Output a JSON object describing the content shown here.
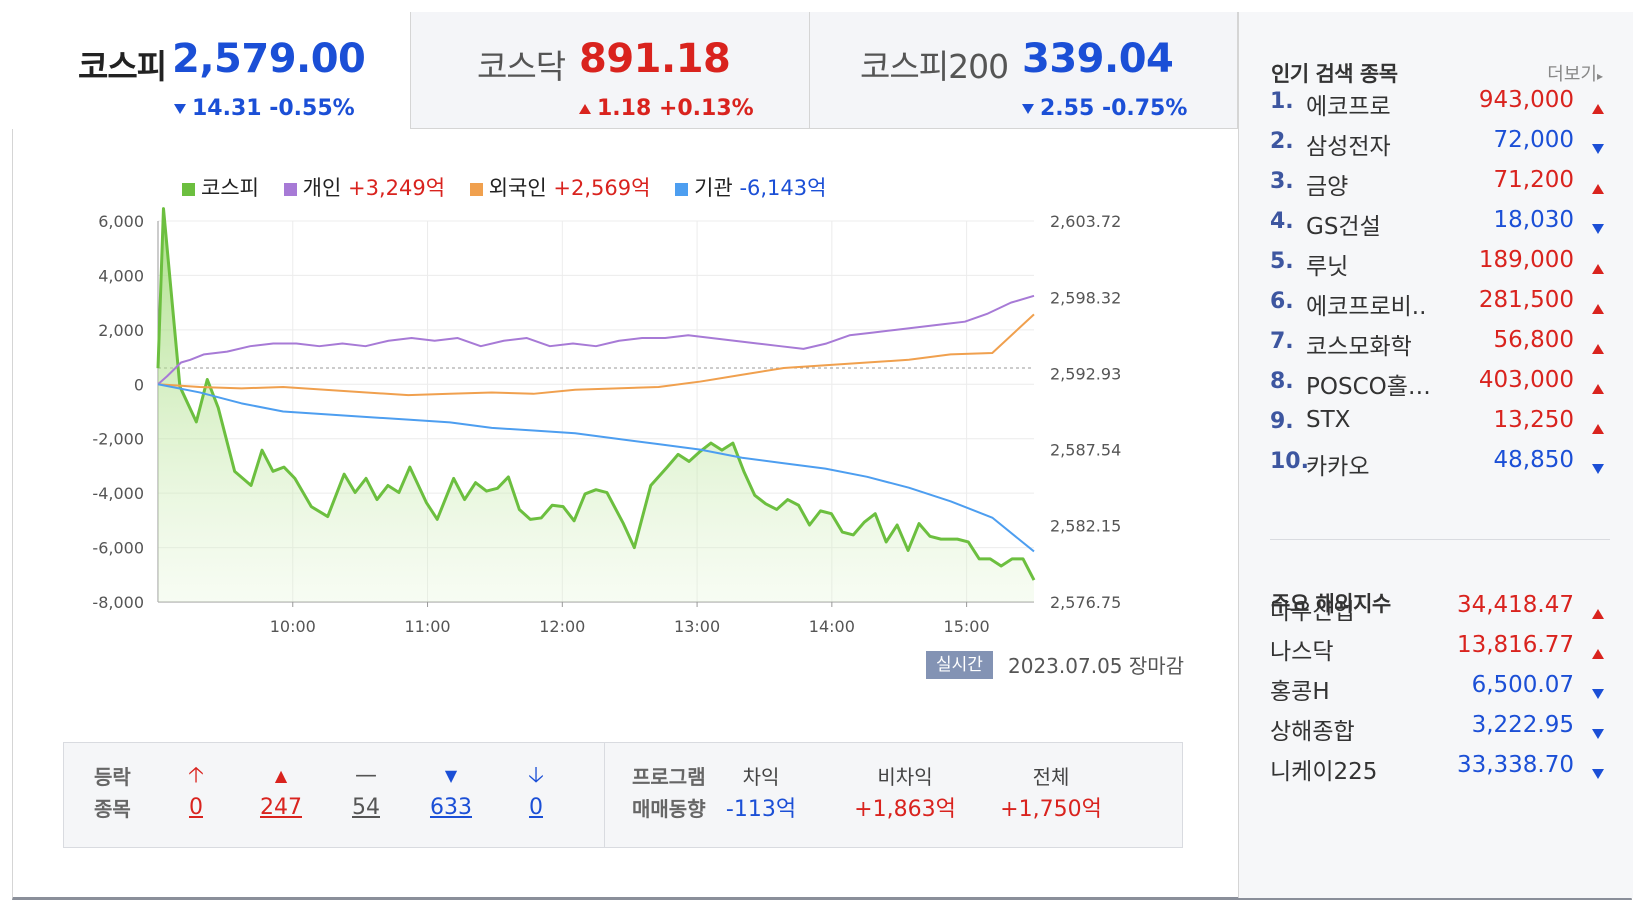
{
  "tabs": [
    {
      "name": "코스피",
      "value": "2,579.00",
      "change": "14.31 -0.55%",
      "direction": "down"
    },
    {
      "name": "코스닥",
      "value": "891.18",
      "change": "1.18 +0.13%",
      "direction": "up"
    },
    {
      "name": "코스피200",
      "value": "339.04",
      "change": "2.55 -0.75%",
      "direction": "down"
    }
  ],
  "legend": {
    "kospi": "코스피",
    "individual_label": "개인",
    "individual_value": "+3,249억",
    "foreign_label": "외국인",
    "foreign_value": "+2,569억",
    "institution_label": "기관",
    "institution_value": "-6,143억"
  },
  "colors": {
    "kospi": "#6cbf3f",
    "individual": "#a77ad6",
    "foreign": "#f0a04e",
    "institution": "#4d9ef0",
    "up": "#d9231e",
    "down": "#1b4fd6"
  },
  "chart_data": {
    "type": "line",
    "x_ticks": [
      "10:00",
      "11:00",
      "12:00",
      "13:00",
      "14:00",
      "15:00"
    ],
    "y_left_ticks": [
      "6,000",
      "4,000",
      "2,000",
      "0",
      "-2,000",
      "-4,000",
      "-6,000",
      "-8,000"
    ],
    "y_right_ticks": [
      "2,603.72",
      "2,598.32",
      "2,592.93",
      "2,587.54",
      "2,582.15",
      "2,576.75"
    ],
    "ylim_left": [
      -8000,
      6000
    ],
    "ylim_right": [
      2576.75,
      2603.72
    ],
    "x_range": [
      "09:00",
      "15:30"
    ],
    "reference_line": 2593.31,
    "series": [
      {
        "name": "코스피",
        "axis": "right",
        "points": [
          [
            0,
            2593.3
          ],
          [
            0.05,
            2604.6
          ],
          [
            0.2,
            2592.0
          ],
          [
            0.35,
            2589.5
          ],
          [
            0.45,
            2592.5
          ],
          [
            0.55,
            2590.5
          ],
          [
            0.7,
            2586.0
          ],
          [
            0.85,
            2585.0
          ],
          [
            0.95,
            2587.5
          ],
          [
            1.05,
            2586.0
          ],
          [
            1.15,
            2586.3
          ],
          [
            1.25,
            2585.5
          ],
          [
            1.4,
            2583.5
          ],
          [
            1.55,
            2582.8
          ],
          [
            1.7,
            2585.8
          ],
          [
            1.8,
            2584.5
          ],
          [
            1.9,
            2585.5
          ],
          [
            2.0,
            2584.0
          ],
          [
            2.1,
            2585.0
          ],
          [
            2.2,
            2584.5
          ],
          [
            2.3,
            2586.3
          ],
          [
            2.45,
            2583.8
          ],
          [
            2.55,
            2582.6
          ],
          [
            2.7,
            2585.5
          ],
          [
            2.8,
            2584.0
          ],
          [
            2.9,
            2585.2
          ],
          [
            3.0,
            2584.6
          ],
          [
            3.1,
            2584.8
          ],
          [
            3.2,
            2585.6
          ],
          [
            3.3,
            2583.3
          ],
          [
            3.4,
            2582.6
          ],
          [
            3.5,
            2582.7
          ],
          [
            3.6,
            2583.6
          ],
          [
            3.7,
            2583.5
          ],
          [
            3.8,
            2582.5
          ],
          [
            3.9,
            2584.4
          ],
          [
            4.0,
            2584.7
          ],
          [
            4.1,
            2584.5
          ],
          [
            4.25,
            2582.3
          ],
          [
            4.35,
            2580.6
          ],
          [
            4.5,
            2585.0
          ],
          [
            4.65,
            2586.3
          ],
          [
            4.75,
            2587.2
          ],
          [
            4.85,
            2586.7
          ],
          [
            4.95,
            2587.4
          ],
          [
            5.05,
            2588.0
          ],
          [
            5.15,
            2587.5
          ],
          [
            5.25,
            2588.0
          ],
          [
            5.35,
            2586.0
          ],
          [
            5.45,
            2584.3
          ],
          [
            5.55,
            2583.7
          ],
          [
            5.65,
            2583.3
          ],
          [
            5.75,
            2584.0
          ],
          [
            5.85,
            2583.6
          ],
          [
            5.95,
            2582.2
          ],
          [
            6.05,
            2583.2
          ],
          [
            6.15,
            2583.0
          ],
          [
            6.25,
            2581.7
          ],
          [
            6.35,
            2581.5
          ],
          [
            6.45,
            2582.4
          ],
          [
            6.55,
            2583.0
          ],
          [
            6.65,
            2581.0
          ],
          [
            6.75,
            2582.2
          ],
          [
            6.85,
            2580.4
          ],
          [
            6.95,
            2582.3
          ],
          [
            7.05,
            2581.4
          ],
          [
            7.15,
            2581.2
          ],
          [
            7.3,
            2581.2
          ],
          [
            7.4,
            2581.0
          ],
          [
            7.5,
            2579.8
          ],
          [
            7.6,
            2579.8
          ],
          [
            7.7,
            2579.3
          ],
          [
            7.8,
            2579.8
          ],
          [
            7.9,
            2579.8
          ],
          [
            8.0,
            2578.3
          ]
        ]
      },
      {
        "name": "개인",
        "axis": "left",
        "points": [
          [
            0,
            0
          ],
          [
            0.2,
            300
          ],
          [
            0.5,
            800
          ],
          [
            0.7,
            900
          ],
          [
            1.0,
            1100
          ],
          [
            1.5,
            1200
          ],
          [
            2.0,
            1400
          ],
          [
            2.5,
            1500
          ],
          [
            3.0,
            1500
          ],
          [
            3.5,
            1400
          ],
          [
            4.0,
            1500
          ],
          [
            4.5,
            1400
          ],
          [
            5.0,
            1600
          ],
          [
            5.5,
            1700
          ],
          [
            6.0,
            1600
          ],
          [
            6.5,
            1700
          ],
          [
            7.0,
            1400
          ],
          [
            7.5,
            1600
          ],
          [
            8.0,
            1700
          ],
          [
            8.5,
            1400
          ],
          [
            9.0,
            1500
          ],
          [
            9.5,
            1400
          ],
          [
            10.0,
            1600
          ],
          [
            10.5,
            1700
          ],
          [
            11.0,
            1700
          ],
          [
            11.5,
            1800
          ],
          [
            12.0,
            1700
          ],
          [
            12.5,
            1600
          ],
          [
            13.0,
            1500
          ],
          [
            13.5,
            1400
          ],
          [
            14.0,
            1300
          ],
          [
            14.5,
            1500
          ],
          [
            15.0,
            1800
          ],
          [
            15.5,
            1900
          ],
          [
            16.0,
            2000
          ],
          [
            16.5,
            2100
          ],
          [
            17.0,
            2200
          ],
          [
            17.5,
            2300
          ],
          [
            18.0,
            2600
          ],
          [
            18.5,
            3000
          ],
          [
            19.0,
            3250
          ]
        ]
      },
      {
        "name": "외국인",
        "axis": "left",
        "points": [
          [
            0,
            0
          ],
          [
            1,
            -100
          ],
          [
            2,
            -150
          ],
          [
            3,
            -100
          ],
          [
            4,
            -200
          ],
          [
            5,
            -300
          ],
          [
            6,
            -400
          ],
          [
            7,
            -350
          ],
          [
            8,
            -300
          ],
          [
            9,
            -350
          ],
          [
            10,
            -200
          ],
          [
            11,
            -150
          ],
          [
            12,
            -100
          ],
          [
            13,
            100
          ],
          [
            14,
            350
          ],
          [
            15,
            600
          ],
          [
            16,
            700
          ],
          [
            17,
            800
          ],
          [
            18,
            900
          ],
          [
            19,
            1100
          ],
          [
            20,
            1150
          ],
          [
            21,
            2569
          ]
        ]
      },
      {
        "name": "기관",
        "axis": "left",
        "points": [
          [
            0,
            0
          ],
          [
            1,
            -300
          ],
          [
            2,
            -700
          ],
          [
            3,
            -1000
          ],
          [
            4,
            -1100
          ],
          [
            5,
            -1200
          ],
          [
            6,
            -1300
          ],
          [
            7,
            -1400
          ],
          [
            8,
            -1600
          ],
          [
            9,
            -1700
          ],
          [
            10,
            -1800
          ],
          [
            11,
            -2000
          ],
          [
            12,
            -2200
          ],
          [
            13,
            -2400
          ],
          [
            14,
            -2700
          ],
          [
            15,
            -2900
          ],
          [
            16,
            -3100
          ],
          [
            17,
            -3400
          ],
          [
            18,
            -3800
          ],
          [
            19,
            -4300
          ],
          [
            20,
            -4900
          ],
          [
            21,
            -6143
          ]
        ]
      }
    ]
  },
  "realtime": {
    "badge": "실시간",
    "date": "2023.07.05 장마감"
  },
  "breadth": {
    "label_line1": "등락",
    "label_line2": "종목",
    "items": [
      {
        "icon": "upper-limit-icon",
        "glyph": "🡡",
        "value": "0",
        "color": "#d9231e"
      },
      {
        "icon": "rise-icon",
        "glyph": "▲",
        "value": "247",
        "color": "#d9231e"
      },
      {
        "icon": "flat-icon",
        "glyph": "—",
        "value": "54",
        "color": "#555"
      },
      {
        "icon": "fall-icon",
        "glyph": "▼",
        "value": "633",
        "color": "#1b4fd6"
      },
      {
        "icon": "lower-limit-icon",
        "glyph": "🡣",
        "value": "0",
        "color": "#1b4fd6"
      }
    ]
  },
  "program": {
    "label_line1": "프로그램",
    "label_line2": "매매동향",
    "cols": [
      {
        "head": "차익",
        "value": "-113억",
        "color": "#1b4fd6"
      },
      {
        "head": "비차익",
        "value": "+1,863억",
        "color": "#d9231e"
      },
      {
        "head": "전체",
        "value": "+1,750억",
        "color": "#d9231e"
      }
    ]
  },
  "popular": {
    "title": "인기 검색 종목",
    "more": "더보기",
    "items": [
      {
        "rank": "1.",
        "name": "에코프로",
        "price": "943,000",
        "dir": "up"
      },
      {
        "rank": "2.",
        "name": "삼성전자",
        "price": "72,000",
        "dir": "down"
      },
      {
        "rank": "3.",
        "name": "금양",
        "price": "71,200",
        "dir": "up"
      },
      {
        "rank": "4.",
        "name": "GS건설",
        "price": "18,030",
        "dir": "down"
      },
      {
        "rank": "5.",
        "name": "루닛",
        "price": "189,000",
        "dir": "up"
      },
      {
        "rank": "6.",
        "name": "에코프로비..",
        "price": "281,500",
        "dir": "up"
      },
      {
        "rank": "7.",
        "name": "코스모화학",
        "price": "56,800",
        "dir": "up"
      },
      {
        "rank": "8.",
        "name": "POSCO홀…",
        "price": "403,000",
        "dir": "up"
      },
      {
        "rank": "9.",
        "name": "STX",
        "price": "13,250",
        "dir": "up"
      },
      {
        "rank": "10.",
        "name": "카카오",
        "price": "48,850",
        "dir": "down"
      }
    ]
  },
  "overseas": {
    "title": "주요 해외지수",
    "items": [
      {
        "name": "다우산업",
        "price": "34,418.47",
        "dir": "up"
      },
      {
        "name": "나스닥",
        "price": "13,816.77",
        "dir": "up"
      },
      {
        "name": "홍콩H",
        "price": "6,500.07",
        "dir": "down"
      },
      {
        "name": "상해종합",
        "price": "3,222.95",
        "dir": "down"
      },
      {
        "name": "니케이225",
        "price": "33,338.70",
        "dir": "down"
      }
    ]
  }
}
